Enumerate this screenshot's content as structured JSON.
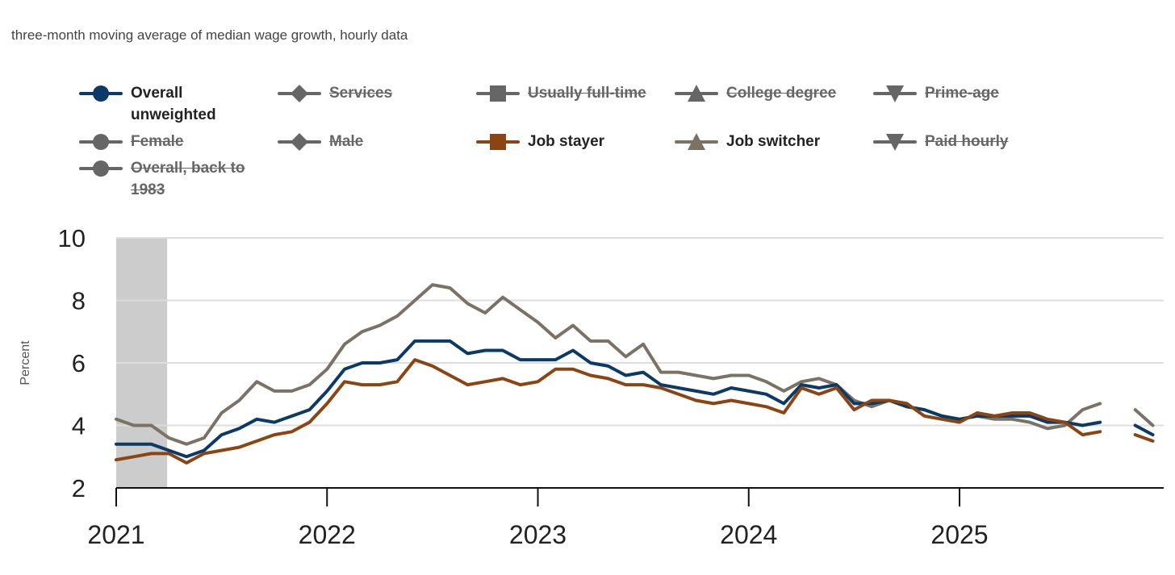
{
  "subtitle": "three-month moving average of median wage growth, hourly data",
  "legend": [
    {
      "label": "Overall unweighted",
      "marker": "circle",
      "color": "#0b3a66",
      "active": true
    },
    {
      "label": "Services",
      "marker": "diamond",
      "color": "#666666",
      "active": false
    },
    {
      "label": "Usually full-time",
      "marker": "square",
      "color": "#666666",
      "active": false
    },
    {
      "label": "College degree",
      "marker": "triangle",
      "color": "#666666",
      "active": false
    },
    {
      "label": "Prime-age",
      "marker": "triangle-down",
      "color": "#666666",
      "active": false
    },
    {
      "label": "Female",
      "marker": "circle",
      "color": "#666666",
      "active": false
    },
    {
      "label": "Male",
      "marker": "diamond",
      "color": "#666666",
      "active": false
    },
    {
      "label": "Job stayer",
      "marker": "square",
      "color": "#8b4513",
      "active": true
    },
    {
      "label": "Job switcher",
      "marker": "triangle",
      "color": "#7a7265",
      "active": true
    },
    {
      "label": "Paid hourly",
      "marker": "triangle-down",
      "color": "#666666",
      "active": false
    },
    {
      "label": "Overall, back to 1983",
      "marker": "circle",
      "color": "#666666",
      "active": false
    }
  ],
  "chart_data": {
    "type": "line",
    "title": "",
    "xlabel": "",
    "ylabel": "Percent",
    "ylim": [
      2,
      10
    ],
    "yticks": [
      "2",
      "4",
      "6",
      "8",
      "10"
    ],
    "xticks": [
      "2021",
      "2022",
      "2023",
      "2024",
      "2025"
    ],
    "x_start": "2021-01",
    "x_frequency": "monthly",
    "grid": true,
    "shaded_period": {
      "start_month_index": 0,
      "end_month_index": 2.9
    },
    "series": [
      {
        "name": "Job switcher",
        "color": "#7a7265",
        "values": [
          4.2,
          4.0,
          4.0,
          3.6,
          3.4,
          3.6,
          4.4,
          4.8,
          5.4,
          5.1,
          5.1,
          5.3,
          5.8,
          6.6,
          7.0,
          7.2,
          7.5,
          8.0,
          8.5,
          8.4,
          7.9,
          7.6,
          8.1,
          7.7,
          7.3,
          6.8,
          7.2,
          6.7,
          6.7,
          6.2,
          6.6,
          5.7,
          5.7,
          5.6,
          5.5,
          5.6,
          5.6,
          5.4,
          5.1,
          5.4,
          5.5,
          5.3,
          4.8,
          4.6,
          4.8,
          4.6,
          4.5,
          4.3,
          4.2,
          4.3,
          4.2,
          4.2,
          4.1,
          3.9,
          4.0,
          4.5,
          4.7,
          null,
          4.5,
          4.0
        ]
      },
      {
        "name": "Overall unweighted",
        "color": "#0b3a66",
        "values": [
          3.4,
          3.4,
          3.4,
          3.2,
          3.0,
          3.2,
          3.7,
          3.9,
          4.2,
          4.1,
          4.3,
          4.5,
          5.1,
          5.8,
          6.0,
          6.0,
          6.1,
          6.7,
          6.7,
          6.7,
          6.3,
          6.4,
          6.4,
          6.1,
          6.1,
          6.1,
          6.4,
          6.0,
          5.9,
          5.6,
          5.7,
          5.3,
          5.2,
          5.1,
          5.0,
          5.2,
          5.1,
          5.0,
          4.7,
          5.3,
          5.2,
          5.3,
          4.7,
          4.7,
          4.8,
          4.6,
          4.5,
          4.3,
          4.2,
          4.3,
          4.3,
          4.3,
          4.3,
          4.1,
          4.1,
          4.0,
          4.1,
          null,
          4.0,
          3.7
        ]
      },
      {
        "name": "Job stayer",
        "color": "#8b4513",
        "values": [
          2.9,
          3.0,
          3.1,
          3.1,
          2.8,
          3.1,
          3.2,
          3.3,
          3.5,
          3.7,
          3.8,
          4.1,
          4.7,
          5.4,
          5.3,
          5.3,
          5.4,
          6.1,
          5.9,
          5.6,
          5.3,
          5.4,
          5.5,
          5.3,
          5.4,
          5.8,
          5.8,
          5.6,
          5.5,
          5.3,
          5.3,
          5.2,
          5.0,
          4.8,
          4.7,
          4.8,
          4.7,
          4.6,
          4.4,
          5.2,
          5.0,
          5.2,
          4.5,
          4.8,
          4.8,
          4.7,
          4.3,
          4.2,
          4.1,
          4.4,
          4.3,
          4.4,
          4.4,
          4.2,
          4.1,
          3.7,
          3.8,
          null,
          3.7,
          3.5
        ]
      }
    ]
  }
}
